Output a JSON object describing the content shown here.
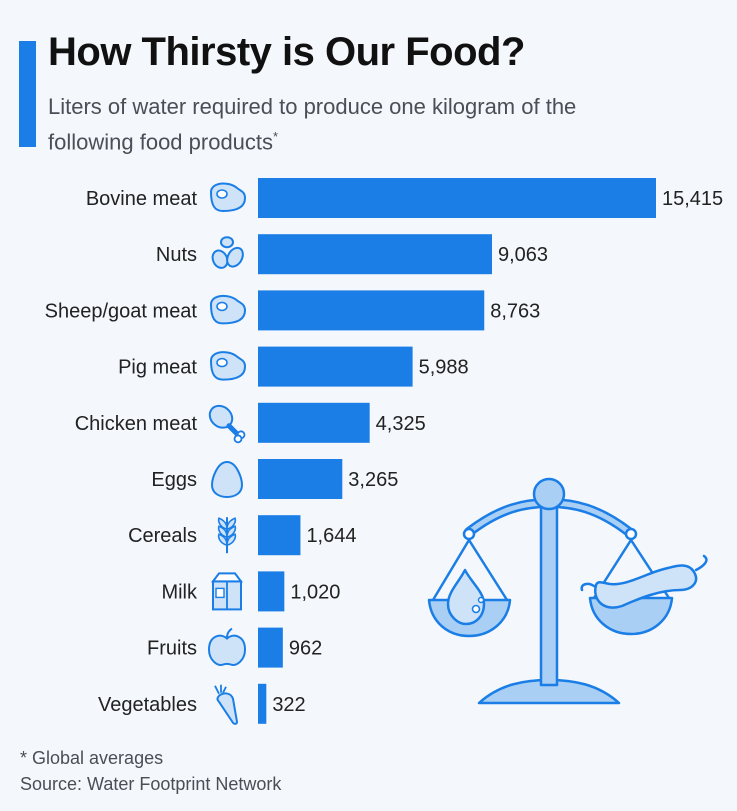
{
  "header": {
    "title": "How Thirsty is Our Food?",
    "subtitle": "Liters of water required to produce one kilogram of the following food products",
    "subtitle_mark": "*"
  },
  "footer": {
    "note": "* Global averages",
    "source": "Source: Water Footprint Network"
  },
  "colors": {
    "accent": "#1a7ee6",
    "bar": "#1a7ee6",
    "icon_fill": "#cfe3f8",
    "icon_stroke": "#1a7ee6",
    "illustration_fill": "#a9cff5"
  },
  "icons": [
    "steak-icon",
    "nuts-icon",
    "steak-icon",
    "steak-icon",
    "chicken-leg-icon",
    "egg-icon",
    "wheat-icon",
    "milk-carton-icon",
    "apple-icon",
    "carrot-icon"
  ],
  "illustration": "balance-scale-water-vs-sausage",
  "chart_data": {
    "type": "bar",
    "orientation": "horizontal",
    "categories": [
      "Bovine meat",
      "Nuts",
      "Sheep/goat meat",
      "Pig meat",
      "Chicken meat",
      "Eggs",
      "Cereals",
      "Milk",
      "Fruits",
      "Vegetables"
    ],
    "values": [
      15415,
      9063,
      8763,
      5988,
      4325,
      3265,
      1644,
      1020,
      962,
      322
    ],
    "value_labels": [
      "15,415",
      "9,063",
      "8,763",
      "5,988",
      "4,325",
      "3,265",
      "1,644",
      "1,020",
      "962",
      "322"
    ],
    "xlim": [
      0,
      15415
    ],
    "grid": false,
    "legend": "none"
  }
}
